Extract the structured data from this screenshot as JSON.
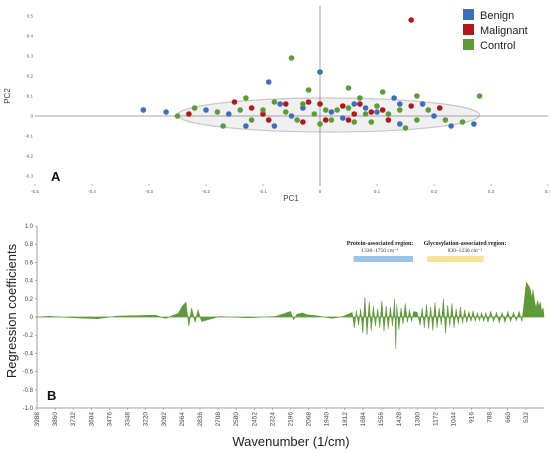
{
  "panel_a_label": "A",
  "panel_b_label": "B",
  "colors": {
    "benign": "#3a6fbf",
    "malignant": "#b3161b",
    "control": "#5f9a3a",
    "axis": "#888888",
    "ellipse_fill": "#f0f0f0",
    "ellipse_stroke": "#c8c8c8",
    "signal": "#5f9a3a",
    "protein_bar": "#9cc3ea",
    "glyco_bar": "#f6e39a"
  },
  "chart_data": [
    {
      "type": "scatter",
      "xlabel": "PC1",
      "ylabel": "PC2",
      "xlim": [
        -0.5,
        0.4
      ],
      "ylim": [
        -0.35,
        0.55
      ],
      "xticks": [
        "-0.5",
        "-0.4",
        "-0.3",
        "-0.2",
        "-0.1",
        "0",
        "0.1",
        "0.2",
        "0.3",
        "0.4"
      ],
      "xtick_values": [
        -0.5,
        -0.4,
        -0.3,
        -0.2,
        -0.1,
        0,
        0.1,
        0.2,
        0.3,
        0.4
      ],
      "yticks": [
        "0.5",
        "0.4",
        "0.3",
        "0.2",
        "0.1",
        "0",
        "-0.1",
        "-0.2",
        "-0.3"
      ],
      "ytick_values": [
        0.5,
        0.4,
        0.3,
        0.2,
        0.1,
        0,
        -0.1,
        -0.2,
        -0.3
      ],
      "legend_position": "top-right",
      "confidence_ellipse": {
        "center": [
          0.015,
          0.005
        ],
        "radius_x": 0.265,
        "radius_y": 0.085
      },
      "series": [
        {
          "name": "Benign",
          "points": [
            [
              -0.31,
              0.03
            ],
            [
              -0.09,
              0.17
            ],
            [
              0.0,
              0.22
            ],
            [
              -0.07,
              0.06
            ],
            [
              -0.16,
              0.01
            ],
            [
              -0.2,
              0.03
            ],
            [
              -0.13,
              -0.05
            ],
            [
              0.06,
              0.06
            ],
            [
              0.13,
              0.09
            ],
            [
              0.14,
              0.06
            ],
            [
              0.08,
              0.04
            ],
            [
              0.02,
              0.02
            ],
            [
              -0.03,
              0.04
            ],
            [
              -0.08,
              -0.05
            ],
            [
              0.04,
              -0.01
            ],
            [
              0.14,
              -0.04
            ],
            [
              0.18,
              0.06
            ],
            [
              0.23,
              -0.05
            ],
            [
              0.27,
              -0.04
            ],
            [
              -0.05,
              0.0
            ],
            [
              -0.27,
              0.02
            ],
            [
              0.1,
              0.02
            ],
            [
              0.2,
              0.0
            ]
          ]
        },
        {
          "name": "Malignant",
          "points": [
            [
              0.16,
              0.48
            ],
            [
              0.21,
              0.04
            ],
            [
              -0.23,
              0.01
            ],
            [
              -0.15,
              0.07
            ],
            [
              -0.02,
              0.07
            ],
            [
              0.04,
              0.05
            ],
            [
              0.05,
              -0.02
            ],
            [
              0.12,
              -0.02
            ],
            [
              0.09,
              0.02
            ],
            [
              -0.1,
              0.01
            ],
            [
              -0.06,
              0.06
            ],
            [
              -0.03,
              -0.03
            ],
            [
              0.01,
              -0.02
            ],
            [
              0.07,
              0.06
            ],
            [
              0.11,
              0.03
            ],
            [
              0.0,
              0.06
            ],
            [
              -0.09,
              -0.02
            ],
            [
              0.16,
              0.05
            ],
            [
              0.06,
              0.01
            ],
            [
              -0.12,
              0.04
            ]
          ]
        },
        {
          "name": "Control",
          "points": [
            [
              -0.05,
              0.29
            ],
            [
              -0.25,
              0.0
            ],
            [
              -0.22,
              0.04
            ],
            [
              -0.18,
              0.02
            ],
            [
              -0.17,
              -0.05
            ],
            [
              -0.14,
              0.03
            ],
            [
              -0.12,
              -0.02
            ],
            [
              -0.1,
              0.03
            ],
            [
              -0.06,
              0.02
            ],
            [
              -0.04,
              -0.02
            ],
            [
              -0.01,
              0.01
            ],
            [
              0.01,
              0.03
            ],
            [
              0.02,
              -0.02
            ],
            [
              0.03,
              0.03
            ],
            [
              0.05,
              0.04
            ],
            [
              0.06,
              -0.03
            ],
            [
              0.08,
              0.01
            ],
            [
              0.09,
              -0.03
            ],
            [
              0.1,
              0.05
            ],
            [
              0.12,
              0.01
            ],
            [
              0.14,
              0.03
            ],
            [
              0.15,
              -0.06
            ],
            [
              0.17,
              -0.02
            ],
            [
              0.19,
              0.03
            ],
            [
              0.22,
              -0.02
            ],
            [
              0.25,
              -0.03
            ],
            [
              0.28,
              0.1
            ],
            [
              0.05,
              0.14
            ],
            [
              -0.02,
              0.13
            ],
            [
              0.11,
              0.12
            ],
            [
              -0.03,
              0.06
            ],
            [
              0.0,
              -0.04
            ],
            [
              0.07,
              0.09
            ],
            [
              -0.13,
              0.09
            ],
            [
              0.17,
              0.1
            ],
            [
              -0.08,
              0.07
            ]
          ]
        }
      ]
    },
    {
      "type": "area",
      "xlabel": "Wavenumber (1/cm)",
      "ylabel": "Regression coefficients",
      "xlim": [
        3988,
        404
      ],
      "ylim": [
        -1.0,
        1.0
      ],
      "xticks": [
        "3988",
        "3860",
        "3732",
        "3604",
        "3476",
        "3348",
        "3220",
        "3092",
        "2964",
        "2836",
        "2708",
        "2580",
        "2452",
        "2324",
        "2196",
        "2068",
        "1940",
        "1812",
        "1684",
        "1556",
        "1428",
        "1300",
        "1172",
        "1044",
        "916",
        "788",
        "660",
        "532"
      ],
      "yticks": [
        "1.0",
        "0.8",
        "0.6",
        "0.4",
        "0.2",
        "0",
        "-0.2",
        "-0.4",
        "-0.6",
        "-0.8",
        "-1.0"
      ],
      "ytick_values": [
        1.0,
        0.8,
        0.6,
        0.4,
        0.2,
        0,
        -0.2,
        -0.4,
        -0.6,
        -0.8,
        -1.0
      ],
      "annotations": [
        {
          "title": "Protein-associated region:",
          "range": "1330–1750 cm⁻¹",
          "x_from": 1750,
          "x_to": 1330
        },
        {
          "title": "Glycosylation-associated region:",
          "range": "830–1230 cm⁻¹",
          "x_from": 1230,
          "x_to": 830
        }
      ],
      "peaks": [
        [
          3900,
          0.008
        ],
        [
          3700,
          -0.01
        ],
        [
          3560,
          -0.018
        ],
        [
          3420,
          0.01
        ],
        [
          3290,
          0.015
        ],
        [
          3150,
          0.02
        ],
        [
          3080,
          -0.015
        ],
        [
          2990,
          0.04
        ],
        [
          2960,
          0.12
        ],
        [
          2935,
          0.16
        ],
        [
          2915,
          -0.1
        ],
        [
          2895,
          0.1
        ],
        [
          2870,
          -0.06
        ],
        [
          2850,
          0.08
        ],
        [
          2825,
          -0.05
        ],
        [
          2700,
          0.005
        ],
        [
          2500,
          -0.008
        ],
        [
          2300,
          0.006
        ],
        [
          2215,
          0.05
        ],
        [
          2195,
          0.06
        ],
        [
          2175,
          -0.03
        ],
        [
          2150,
          0.03
        ],
        [
          2110,
          0.045
        ],
        [
          2080,
          0.025
        ],
        [
          2000,
          0.01
        ],
        [
          1900,
          -0.015
        ],
        [
          1820,
          0.008
        ],
        [
          1760,
          0.05
        ],
        [
          1745,
          -0.12
        ],
        [
          1730,
          0.07
        ],
        [
          1715,
          -0.09
        ],
        [
          1700,
          0.09
        ],
        [
          1685,
          -0.18
        ],
        [
          1670,
          0.22
        ],
        [
          1655,
          -0.2
        ],
        [
          1640,
          0.17
        ],
        [
          1625,
          -0.15
        ],
        [
          1610,
          0.12
        ],
        [
          1595,
          -0.1
        ],
        [
          1580,
          0.09
        ],
        [
          1565,
          -0.12
        ],
        [
          1550,
          0.18
        ],
        [
          1535,
          -0.16
        ],
        [
          1520,
          0.12
        ],
        [
          1505,
          -0.13
        ],
        [
          1490,
          0.11
        ],
        [
          1475,
          -0.1
        ],
        [
          1460,
          0.2
        ],
        [
          1452,
          -0.35
        ],
        [
          1445,
          0.14
        ],
        [
          1430,
          -0.14
        ],
        [
          1415,
          0.1
        ],
        [
          1400,
          -0.08
        ],
        [
          1385,
          0.15
        ],
        [
          1370,
          -0.06
        ],
        [
          1355,
          0.08
        ],
        [
          1340,
          -0.05
        ],
        [
          1325,
          0.06
        ],
        [
          1300,
          0.05
        ],
        [
          1280,
          -0.09
        ],
        [
          1265,
          0.1
        ],
        [
          1250,
          -0.12
        ],
        [
          1235,
          0.14
        ],
        [
          1220,
          -0.13
        ],
        [
          1205,
          0.11
        ],
        [
          1190,
          -0.15
        ],
        [
          1175,
          0.16
        ],
        [
          1160,
          -0.12
        ],
        [
          1145,
          0.1
        ],
        [
          1130,
          -0.09
        ],
        [
          1115,
          0.2
        ],
        [
          1100,
          -0.18
        ],
        [
          1085,
          0.13
        ],
        [
          1070,
          -0.1
        ],
        [
          1055,
          0.15
        ],
        [
          1040,
          -0.12
        ],
        [
          1025,
          0.09
        ],
        [
          1010,
          -0.08
        ],
        [
          995,
          0.11
        ],
        [
          980,
          -0.07
        ],
        [
          965,
          0.08
        ],
        [
          950,
          -0.06
        ],
        [
          935,
          0.06
        ],
        [
          920,
          -0.05
        ],
        [
          905,
          0.07
        ],
        [
          890,
          -0.05
        ],
        [
          875,
          0.05
        ],
        [
          860,
          -0.04
        ],
        [
          845,
          0.05
        ],
        [
          830,
          -0.05
        ],
        [
          815,
          0.05
        ],
        [
          800,
          -0.06
        ],
        [
          780,
          0.06
        ],
        [
          760,
          -0.05
        ],
        [
          740,
          0.05
        ],
        [
          720,
          -0.06
        ],
        [
          700,
          0.05
        ],
        [
          680,
          -0.06
        ],
        [
          660,
          0.06
        ],
        [
          640,
          -0.05
        ],
        [
          620,
          0.05
        ],
        [
          600,
          -0.04
        ],
        [
          580,
          0.06
        ],
        [
          560,
          -0.05
        ],
        [
          545,
          0.15
        ],
        [
          535,
          0.3
        ],
        [
          528,
          0.38
        ],
        [
          520,
          0.36
        ],
        [
          512,
          0.34
        ],
        [
          505,
          0.32
        ],
        [
          498,
          0.28
        ],
        [
          490,
          0.2
        ],
        [
          482,
          0.3
        ],
        [
          475,
          0.22
        ],
        [
          468,
          0.15
        ],
        [
          460,
          0.1
        ],
        [
          450,
          0.18
        ],
        [
          440,
          0.12
        ],
        [
          430,
          0.16
        ],
        [
          420,
          0.06
        ],
        [
          410,
          0.1
        ]
      ]
    }
  ]
}
